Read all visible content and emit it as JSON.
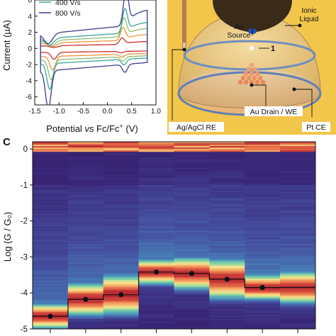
{
  "cv_chart": {
    "type": "line",
    "xlabel_parts": [
      "Potential ",
      "vs",
      " Fc/Fc",
      "+",
      " (V)"
    ],
    "ylabel": "Current (µA)",
    "xlim": [
      -1.5,
      1.0
    ],
    "ylim": [
      -7,
      6
    ],
    "x_ticks": [
      "-1.5",
      "-1.0",
      "-0.5",
      "0.0",
      "0.5",
      "1.0"
    ],
    "x_tick_values": [
      -1.5,
      -1.0,
      -0.5,
      0.0,
      0.5,
      1.0
    ],
    "y_ticks": [
      "6",
      "4",
      "2",
      "0",
      "-2",
      "-4",
      "-6"
    ],
    "y_tick_values": [
      6,
      4,
      2,
      0,
      -2,
      -4,
      -6
    ],
    "legend": [
      "400 V/s",
      "800 V/s"
    ],
    "legend_colors": [
      "#3aa89a",
      "#3b3d8f"
    ],
    "series": [
      {
        "name": "",
        "color": "#c9302c",
        "peak": 0.9,
        "ox_peak_x": 0.3,
        "red_peak_x": -1.1
      },
      {
        "name": "",
        "color": "#e8963a",
        "peak": 1.8,
        "ox_peak_x": 0.32,
        "red_peak_x": -1.13
      },
      {
        "name": "",
        "color": "#8cc06a",
        "peak": 2.6,
        "ox_peak_x": 0.34,
        "red_peak_x": -1.16
      },
      {
        "name": "400 V/s",
        "color": "#3aa89a",
        "peak": 3.4,
        "ox_peak_x": 0.36,
        "red_peak_x": -1.19
      },
      {
        "name": "800 V/s",
        "color": "#3b3d8f",
        "peak": 5.0,
        "ox_peak_x": 0.38,
        "red_peak_x": -1.22
      }
    ]
  },
  "schematic": {
    "labels": {
      "au_source": "Au\nSource",
      "ionic_liquid": "Ionic\nLiquid",
      "molecule": "1",
      "au_drain": "Au Drain / WE",
      "ref": "Ag/AgCl RE",
      "counter": "Pt CE"
    },
    "colors": {
      "background": "#f2c64a",
      "dome": "#d9b98c",
      "tip": "#3a2a1a"
    }
  },
  "panel_c": {
    "panel_label": "C",
    "chart_data": {
      "type": "heatmap",
      "ylabel": "Log (G / G₀)",
      "ylim": [
        -5,
        0.2
      ],
      "y_ticks": [
        "0",
        "-1",
        "-2",
        "-3",
        "-4",
        "-5"
      ],
      "y_tick_values": [
        0,
        -1,
        -2,
        -3,
        -4,
        -5
      ],
      "columns": 8,
      "peak_values": [
        -4.65,
        -4.18,
        -4.05,
        -3.42,
        -3.46,
        -3.62,
        -3.85
      ],
      "step_line": [
        -4.65,
        -4.18,
        -4.05,
        -3.42,
        -3.46,
        -3.62,
        -3.85,
        -3.85
      ],
      "colormap": "spectral_r"
    }
  }
}
